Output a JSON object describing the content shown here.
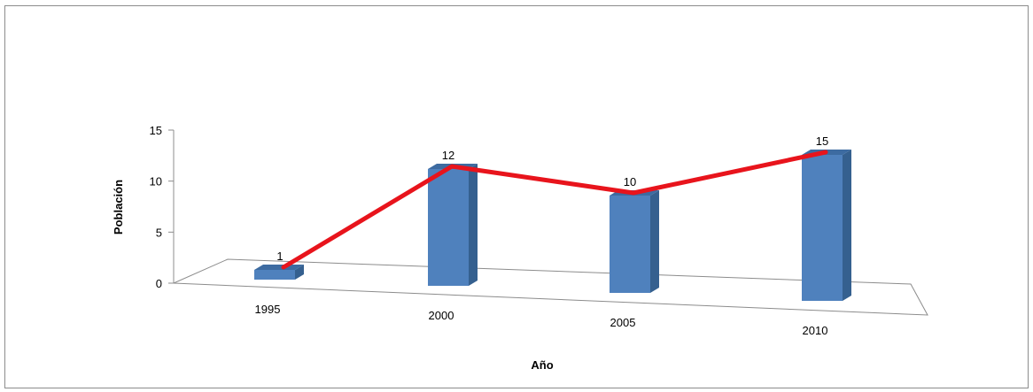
{
  "chart_data": {
    "type": "bar",
    "title": "",
    "xlabel": "Año",
    "ylabel": "Población",
    "categories": [
      "1995",
      "2000",
      "2005",
      "2010"
    ],
    "values": [
      1,
      12,
      10,
      15
    ],
    "overlay_line_values": [
      1,
      12,
      10,
      15
    ],
    "yticks": [
      "0",
      "5",
      "10",
      "15"
    ],
    "ylim": [
      0,
      15
    ],
    "grid": false,
    "legend": "none",
    "bar_color": "#4f81bd",
    "line_color": "#e8141c"
  }
}
